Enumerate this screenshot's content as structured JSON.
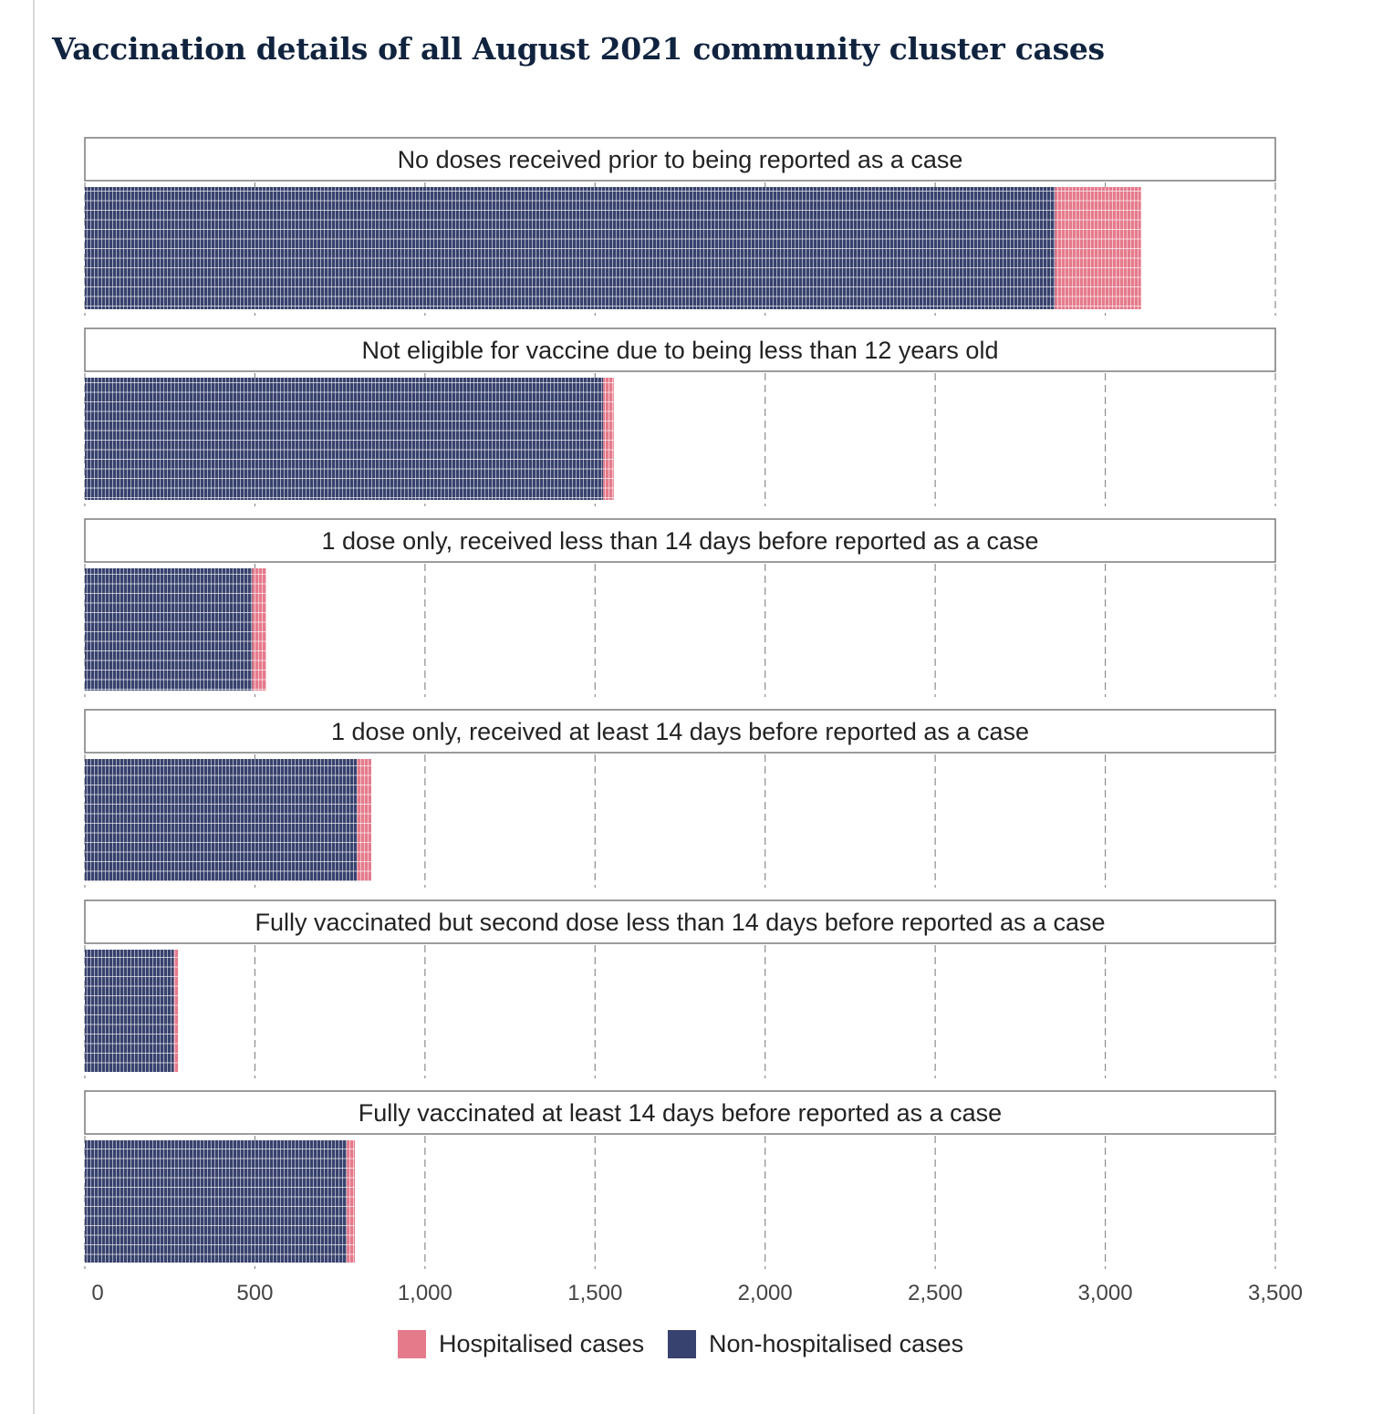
{
  "title": "Vaccination details of all August 2021 community cluster cases",
  "colors": {
    "hospitalised": "#e57a8b",
    "non_hospitalised": "#38426e"
  },
  "chart_data": {
    "type": "bar",
    "orientation": "horizontal",
    "stacked": true,
    "xlim": [
      0,
      3500
    ],
    "x_ticks": [
      0,
      500,
      1000,
      1500,
      2000,
      2500,
      3000,
      3500
    ],
    "x_tick_labels": [
      "0",
      "500",
      "1,000",
      "1,500",
      "2,000",
      "2,500",
      "3,000",
      "3,500"
    ],
    "grid": "vertical dashed",
    "legend_position": "bottom",
    "categories": [
      "No doses received prior to being reported as a case",
      "Not eligible for vaccine due to being less than 12 years old",
      "1 dose only, received less than 14 days before reported as a case",
      "1 dose only, received at least 14 days before reported as a case",
      "Fully vaccinated but second dose less than 14 days before reported as a case",
      "Fully vaccinated at least 14 days before reported as a case"
    ],
    "series": [
      {
        "name": "Non-hospitalised cases",
        "values": [
          2852,
          1524,
          492,
          800,
          262,
          770
        ]
      },
      {
        "name": "Hospitalised cases",
        "values": [
          253,
          31,
          41,
          42,
          12,
          24
        ]
      }
    ],
    "legend": [
      "Hospitalised cases",
      "Non-hospitalised cases"
    ]
  }
}
